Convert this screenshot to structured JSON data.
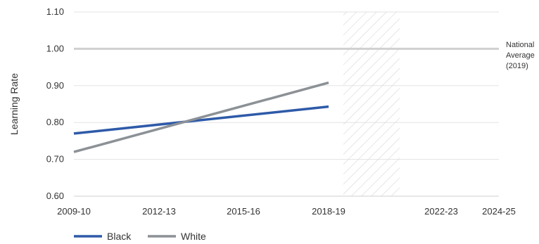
{
  "chart_data": {
    "type": "line",
    "xlabel": "",
    "ylabel": "Learning Rate",
    "ylim": [
      0.6,
      1.1
    ],
    "y_ticks": [
      "0.60",
      "0.70",
      "0.80",
      "0.90",
      "1.00",
      "1.10"
    ],
    "x_tick_labels": [
      "2009-10",
      "2012-13",
      "2015-16",
      "2018-19",
      "2022-23",
      "2024-25"
    ],
    "x": [
      "2009-10",
      "2018-19"
    ],
    "series": [
      {
        "name": "Black",
        "color": "#2e5aa8",
        "values": [
          0.77,
          0.843
        ]
      },
      {
        "name": "White",
        "color": "#8c9196",
        "values": [
          0.72,
          0.908
        ]
      }
    ],
    "reference_line": {
      "value": 1.0,
      "label_lines": [
        "National",
        "Average",
        "(2019)"
      ],
      "color": "#d0d0d0"
    },
    "shaded_region": {
      "pattern": "diagonal-hatch",
      "from": "2019-20",
      "to": "2021-22",
      "color": "#d8d8d8"
    },
    "grid": true,
    "legend_position": "bottom-left"
  }
}
